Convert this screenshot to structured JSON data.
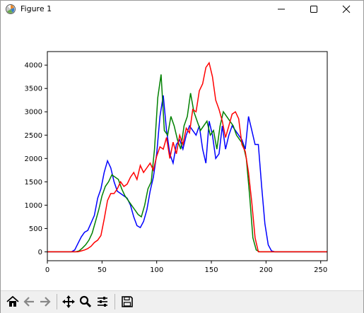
{
  "window": {
    "title": "Figure 1"
  },
  "icons": {
    "app": "matplotlib-icon",
    "minimize": "minimize-icon",
    "maximize": "maximize-icon",
    "close": "close-icon",
    "home": "home-icon",
    "back": "back-arrow-icon",
    "forward": "forward-arrow-icon",
    "pan": "pan-move-icon",
    "zoom": "zoom-magnifier-icon",
    "configure": "configure-subplots-icon",
    "save": "save-floppy-icon"
  },
  "chart_data": {
    "type": "line",
    "title": "",
    "xlabel": "",
    "ylabel": "",
    "xlim": [
      0,
      256
    ],
    "ylim": [
      -190,
      4290
    ],
    "xticks": [
      0,
      50,
      100,
      150,
      200,
      250
    ],
    "yticks": [
      0,
      500,
      1000,
      1500,
      2000,
      2500,
      3000,
      3500,
      4000
    ],
    "grid": false,
    "series": [
      {
        "color": "#0000ff",
        "x": [
          0,
          22,
          25,
          28,
          31,
          34,
          37,
          40,
          43,
          46,
          49,
          52,
          55,
          58,
          61,
          64,
          67,
          70,
          73,
          76,
          79,
          82,
          85,
          88,
          91,
          94,
          97,
          100,
          103,
          106,
          109,
          112,
          115,
          118,
          121,
          124,
          127,
          130,
          133,
          136,
          139,
          142,
          145,
          148,
          151,
          154,
          157,
          160,
          163,
          166,
          169,
          172,
          175,
          178,
          181,
          184,
          187,
          190,
          193,
          196,
          199,
          202,
          205,
          208,
          256
        ],
        "y": [
          0,
          0,
          40,
          180,
          320,
          420,
          460,
          620,
          780,
          1150,
          1350,
          1700,
          1950,
          1800,
          1500,
          1300,
          1250,
          1200,
          1150,
          1000,
          750,
          560,
          520,
          650,
          900,
          1300,
          1600,
          2100,
          2900,
          3350,
          2600,
          2100,
          1900,
          2300,
          2400,
          2200,
          2500,
          2700,
          2600,
          2500,
          2700,
          2200,
          1900,
          2800,
          2500,
          2000,
          2100,
          2700,
          2200,
          2500,
          2700,
          2600,
          2500,
          2400,
          2200,
          2900,
          2600,
          2300,
          2300,
          1400,
          600,
          150,
          20,
          0,
          0
        ]
      },
      {
        "color": "#008000",
        "x": [
          0,
          26,
          29,
          32,
          35,
          38,
          41,
          44,
          47,
          50,
          53,
          56,
          59,
          62,
          65,
          68,
          71,
          74,
          77,
          80,
          83,
          86,
          89,
          92,
          95,
          98,
          101,
          104,
          107,
          110,
          113,
          116,
          119,
          122,
          125,
          128,
          131,
          134,
          137,
          140,
          143,
          146,
          149,
          152,
          155,
          158,
          161,
          164,
          167,
          170,
          173,
          176,
          179,
          182,
          185,
          188,
          191,
          194,
          197,
          256
        ],
        "y": [
          0,
          0,
          20,
          80,
          150,
          250,
          400,
          650,
          900,
          1200,
          1400,
          1500,
          1650,
          1600,
          1550,
          1350,
          1200,
          1100,
          1000,
          900,
          800,
          750,
          1000,
          1350,
          1500,
          2200,
          3300,
          3800,
          2600,
          2500,
          2900,
          2700,
          2400,
          2200,
          2700,
          2900,
          3400,
          3000,
          2800,
          2600,
          2700,
          2800,
          2500,
          2600,
          2200,
          2700,
          3000,
          2900,
          2800,
          2700,
          2500,
          2400,
          2300,
          2000,
          1200,
          300,
          40,
          0,
          0,
          0
        ]
      },
      {
        "color": "#ff0000",
        "x": [
          0,
          28,
          31,
          34,
          37,
          40,
          43,
          46,
          49,
          52,
          55,
          58,
          61,
          64,
          67,
          70,
          73,
          76,
          79,
          82,
          85,
          88,
          91,
          94,
          97,
          100,
          103,
          106,
          109,
          112,
          115,
          118,
          121,
          124,
          127,
          130,
          133,
          136,
          139,
          142,
          145,
          148,
          151,
          154,
          157,
          160,
          163,
          166,
          169,
          172,
          175,
          178,
          181,
          184,
          187,
          190,
          193,
          256
        ],
        "y": [
          0,
          0,
          20,
          40,
          70,
          120,
          200,
          250,
          350,
          700,
          1100,
          1250,
          1250,
          1350,
          1500,
          1400,
          1450,
          1600,
          1700,
          1550,
          1850,
          1700,
          1800,
          1900,
          1750,
          2050,
          2250,
          2200,
          2450,
          2000,
          2350,
          2100,
          2500,
          2300,
          2650,
          2550,
          3050,
          3000,
          3450,
          3600,
          3950,
          4050,
          3750,
          3250,
          3050,
          2800,
          2450,
          2700,
          2950,
          3000,
          2850,
          2300,
          2150,
          1700,
          1050,
          300,
          0,
          0
        ]
      }
    ]
  }
}
